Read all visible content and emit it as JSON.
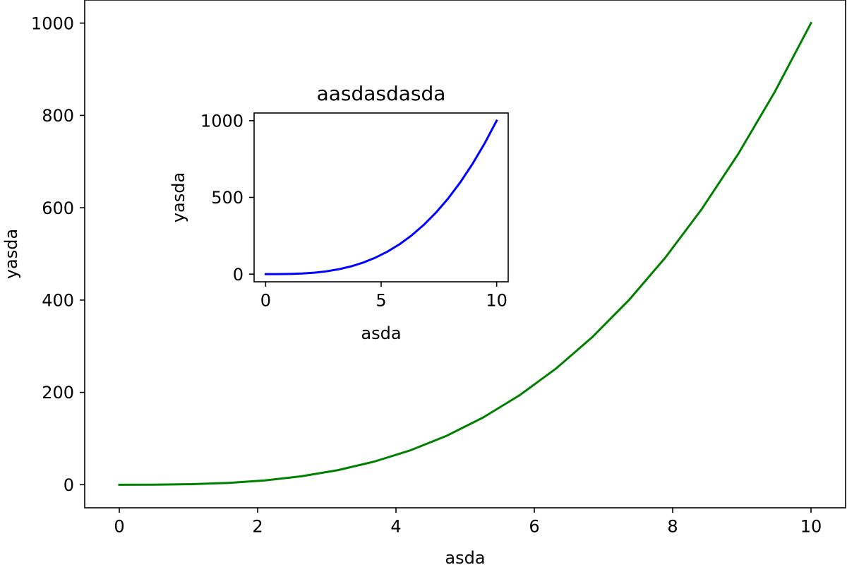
{
  "chart_data": [
    {
      "id": "main",
      "type": "line",
      "title": "",
      "xlabel": "asda",
      "ylabel": "yasda",
      "xlim": [
        -0.5,
        10.5
      ],
      "ylim": [
        -50,
        1050
      ],
      "xticks": [
        0,
        2,
        4,
        6,
        8,
        10
      ],
      "yticks": [
        0,
        200,
        400,
        600,
        800,
        1000
      ],
      "grid": false,
      "color": "#008000",
      "series": [
        {
          "x": [
            0,
            0.526,
            1.053,
            1.579,
            2.105,
            2.632,
            3.158,
            3.684,
            4.211,
            4.737,
            5.263,
            5.789,
            6.316,
            6.842,
            7.368,
            7.895,
            8.421,
            8.947,
            9.474,
            10
          ],
          "y": [
            0,
            0.15,
            1.17,
            3.94,
            9.33,
            18.22,
            31.49,
            50.01,
            74.65,
            106.3,
            145.8,
            194.0,
            251.9,
            320.3,
            400.0,
            492.1,
            597.2,
            716.3,
            850.3,
            1000
          ]
        }
      ]
    },
    {
      "id": "inset",
      "type": "line",
      "title": "aasdasdasda",
      "xlabel": "asda",
      "ylabel": "yasda",
      "xlim": [
        -0.5,
        10.5
      ],
      "ylim": [
        -50,
        1050
      ],
      "xticks": [
        0,
        5,
        10
      ],
      "yticks": [
        0,
        500,
        1000
      ],
      "grid": false,
      "color": "#0000ff",
      "series": [
        {
          "x": [
            0,
            0.526,
            1.053,
            1.579,
            2.105,
            2.632,
            3.158,
            3.684,
            4.211,
            4.737,
            5.263,
            5.789,
            6.316,
            6.842,
            7.368,
            7.895,
            8.421,
            8.947,
            9.474,
            10
          ],
          "y": [
            0,
            0.15,
            1.17,
            3.94,
            9.33,
            18.22,
            31.49,
            50.01,
            74.65,
            106.3,
            145.8,
            194.0,
            251.9,
            320.3,
            400.0,
            492.1,
            597.2,
            716.3,
            850.3,
            1000
          ]
        }
      ]
    }
  ]
}
